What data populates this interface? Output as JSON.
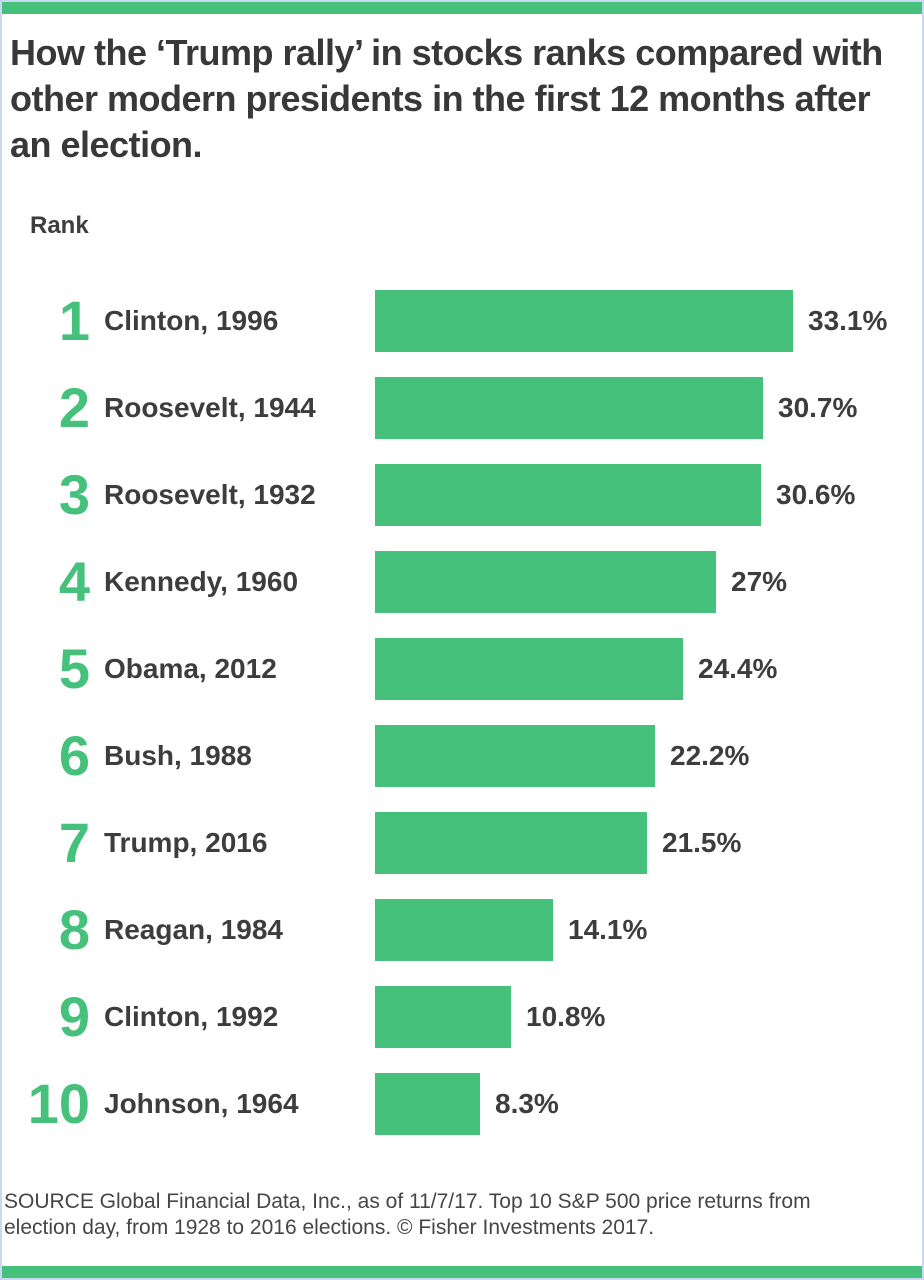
{
  "page": {
    "title": "How the ‘Trump rally’ in stocks ranks compared with other modern presidents in the first 12 months after an election.",
    "rank_header": "Rank",
    "source": "SOURCE Global Financial Data, Inc., as of 11/7/17. Top 10 S&P 500 price returns from election day, from 1928 to 2016 elections. © Fisher Investments 2017.",
    "colors": {
      "bar_green": "#45c17c",
      "accent_strip_green": "#45c17c",
      "border_blue": "#c9d8f3",
      "title_text": "#383838",
      "body_text": "#3d3d3d",
      "source_text": "#464646"
    }
  },
  "chart_data": {
    "type": "bar",
    "orientation": "horizontal",
    "title": "How the ‘Trump rally’ in stocks ranks compared with other modern presidents in the first 12 months after an election.",
    "rank_axis_label": "Rank",
    "categories": [
      "Clinton, 1996",
      "Roosevelt, 1944",
      "Roosevelt, 1932",
      "Kennedy, 1960",
      "Obama, 2012",
      "Bush, 1988",
      "Trump, 2016",
      "Reagan, 1984",
      "Clinton, 1992",
      "Johnson, 1964"
    ],
    "ranks": [
      "1",
      "2",
      "3",
      "4",
      "5",
      "6",
      "7",
      "8",
      "9",
      "10"
    ],
    "values": [
      33.1,
      30.7,
      30.6,
      27,
      24.4,
      22.2,
      21.5,
      14.1,
      10.8,
      8.3
    ],
    "value_labels": [
      "33.1%",
      "30.7%",
      "30.6%",
      "27%",
      "24.4%",
      "22.2%",
      "21.5%",
      "14.1%",
      "10.8%",
      "8.3%"
    ],
    "unit": "%",
    "xlim": [
      0,
      33.1
    ],
    "grid": false,
    "legend": false,
    "source": "SOURCE Global Financial Data, Inc., as of 11/7/17. Top 10 S&P 500 price returns from election day, from 1928 to 2016 elections. © Fisher Investments 2017."
  }
}
